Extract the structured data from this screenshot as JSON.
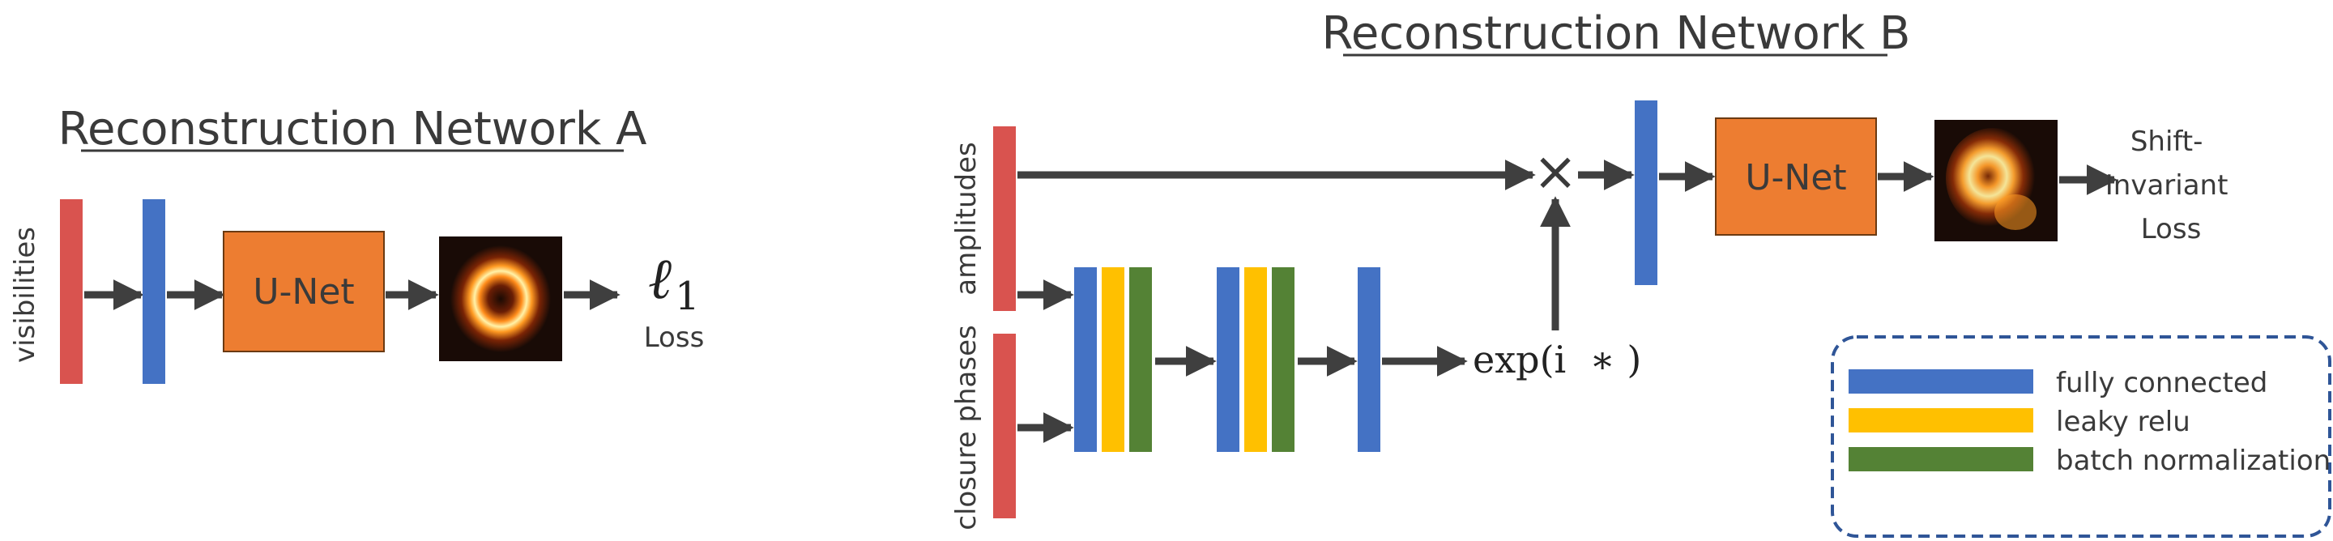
{
  "network_a": {
    "title": "Reconstruction Network A",
    "input_label": "visibilities",
    "unet_label": "U-Net",
    "loss_symbol": "ℓ",
    "loss_subscript": "1",
    "loss_label": "Loss"
  },
  "network_b": {
    "title": "Reconstruction Network B",
    "input_amplitudes_label": "amplitudes",
    "input_phases_label": "closure phases",
    "exp_label": "exp(i  ∗ )",
    "multiply_symbol": "×",
    "unet_label": "U-Net",
    "loss_label_lines": [
      "Shift-",
      "Invariant",
      "Loss"
    ]
  },
  "legend": {
    "items": [
      {
        "label": "fully connected",
        "color": "#4472c4"
      },
      {
        "label": "leaky relu",
        "color": "#ffc000"
      },
      {
        "label": "batch normalization",
        "color": "#548235"
      }
    ]
  },
  "colors": {
    "input": "#d9534f",
    "fully_connected": "#4472c4",
    "leaky_relu": "#ffc000",
    "batch_norm": "#548235",
    "unet": "#ed7d31",
    "arrow": "#3f3f3f",
    "legend_border": "#2f5597"
  }
}
